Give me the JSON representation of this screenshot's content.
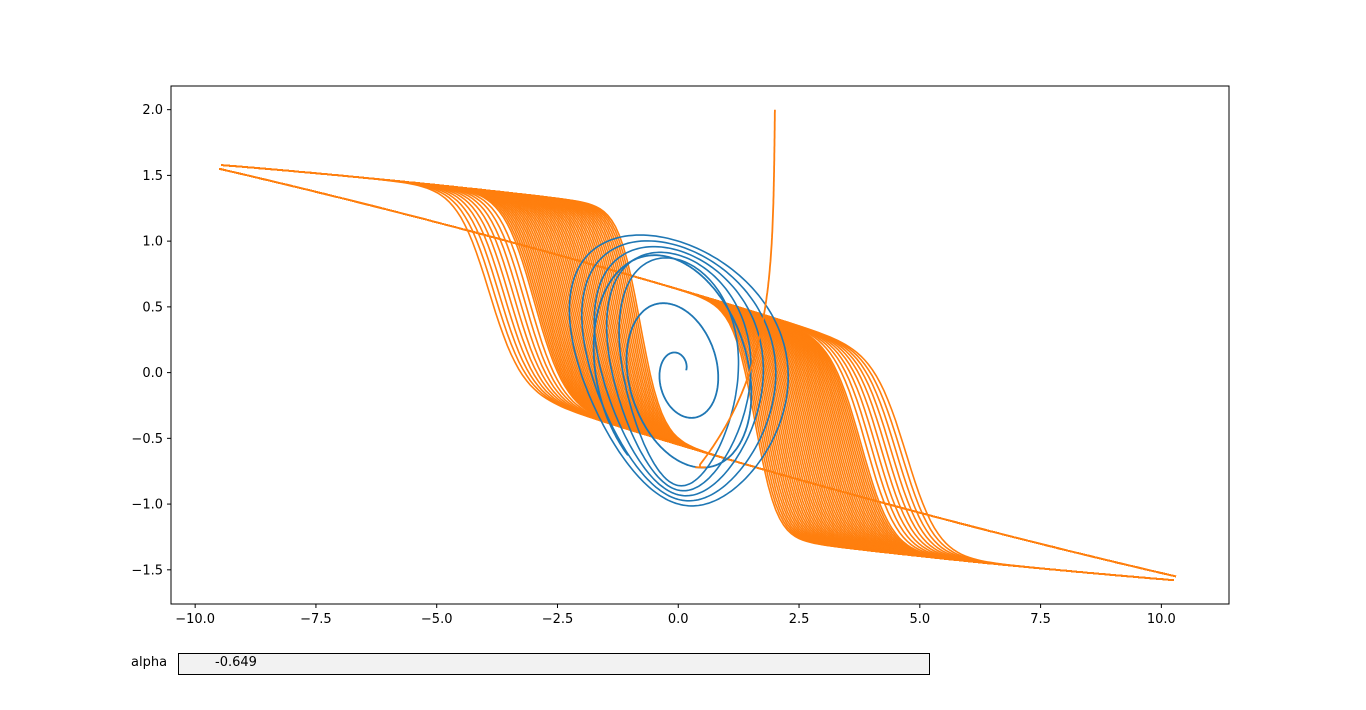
{
  "chart_data": {
    "type": "line",
    "title": "",
    "xlabel": "",
    "ylabel": "",
    "xlim": [
      -10.5,
      11.4
    ],
    "ylim": [
      -1.76,
      2.18
    ],
    "x_ticks": [
      -10.0,
      -7.5,
      -5.0,
      -2.5,
      0.0,
      2.5,
      5.0,
      7.5,
      10.0
    ],
    "x_tick_labels": [
      "−10.0",
      "−7.5",
      "−5.0",
      "−2.5",
      "0.0",
      "2.5",
      "5.0",
      "7.5",
      "10.0"
    ],
    "y_ticks": [
      -1.5,
      -1.0,
      -0.5,
      0.0,
      0.5,
      1.0,
      1.5,
      2.0
    ],
    "y_tick_labels": [
      "−1.5",
      "−1.0",
      "−0.5",
      "0.0",
      "0.5",
      "1.0",
      "1.5",
      "2.0"
    ],
    "grid": false,
    "legend": "none",
    "series": [
      {
        "color": "#1f77b4",
        "start": [
          0.1,
          0.1
        ],
        "description_points": [
          [
            0.1,
            0.1
          ],
          [
            0.05,
            -0.1
          ],
          [
            -0.2,
            -0.12
          ],
          [
            -0.35,
            0.05
          ],
          [
            -0.25,
            0.35
          ],
          [
            0.0,
            0.52
          ],
          [
            0.35,
            0.45
          ],
          [
            0.7,
            0.1
          ],
          [
            0.85,
            -0.35
          ],
          [
            0.6,
            -0.7
          ],
          [
            0.1,
            -0.65
          ],
          [
            -0.5,
            -0.35
          ],
          [
            -1.0,
            0.2
          ],
          [
            -1.2,
            0.75
          ],
          [
            -1.0,
            0.86
          ]
        ]
      },
      {
        "color": "#ff7f0e",
        "start": [
          2.0,
          2.0
        ],
        "description_points": [
          [
            2.0,
            2.0
          ],
          [
            1.95,
            1.2
          ],
          [
            1.8,
            0.4
          ],
          [
            1.6,
            -0.2
          ],
          [
            1.3,
            -0.55
          ],
          [
            0.9,
            -0.72
          ],
          [
            0.5,
            -0.7
          ]
        ]
      }
    ],
    "limit_cycle": {
      "color": "#ff7f0e",
      "x_range": [
        -9.5,
        10.3
      ],
      "upper_branch_endpoints": [
        [
          -9.5,
          1.55
        ],
        [
          2.2,
          1.0
        ]
      ],
      "lower_branch_endpoints": [
        [
          -2.2,
          -1.0
        ],
        [
          10.3,
          -1.58
        ]
      ]
    }
  },
  "slider": {
    "label": "alpha",
    "value": "-0.649"
  }
}
